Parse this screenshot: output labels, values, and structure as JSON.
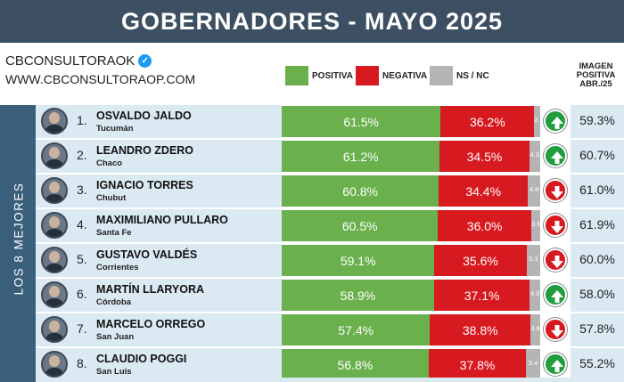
{
  "header": {
    "title": "GOBERNADORES - MAYO 2025"
  },
  "brand": {
    "name": "CBCONSULTORAOK",
    "url": "WWW.CBCONSULTORAOP.COM"
  },
  "side_label": "LOS 8 MEJORES",
  "colors": {
    "positiva": "#6ab04c",
    "negativa": "#d71920",
    "ns_nc": "#b4b4b4",
    "up_arrow": "#1f9d3f",
    "down_arrow": "#d71920"
  },
  "chart_data": {
    "type": "bar",
    "stacked": true,
    "orientation": "horizontal",
    "title": "GOBERNADORES - MAYO 2025",
    "legend": [
      "POSITIVA",
      "NEGATIVA",
      "NS / NC"
    ],
    "prev_header": "IMAGEN POSITIVA ABR./25",
    "categories": [
      "OSVALDO JALDO",
      "LEANDRO ZDERO",
      "IGNACIO TORRES",
      "MAXIMILIANO PULLARO",
      "GUSTAVO VALDÉS",
      "MARTÍN LLARYORA",
      "MARCELO ORREGO",
      "CLAUDIO POGGI"
    ],
    "rows": [
      {
        "rank": "1.",
        "name": "OSVALDO JALDO",
        "province": "Tucumán",
        "positiva": 61.5,
        "negativa": 36.2,
        "ns_nc": 2.3,
        "positiva_label": "61.5%",
        "negativa_label": "36.2%",
        "ns_label": "2.3",
        "trend": "up",
        "prev_label": "59.3%"
      },
      {
        "rank": "2.",
        "name": "LEANDRO ZDERO",
        "province": "Chaco",
        "positiva": 61.2,
        "negativa": 34.5,
        "ns_nc": 4.3,
        "positiva_label": "61.2%",
        "negativa_label": "34.5%",
        "ns_label": "4.3",
        "trend": "up",
        "prev_label": "60.7%"
      },
      {
        "rank": "3.",
        "name": "IGNACIO TORRES",
        "province": "Chubut",
        "positiva": 60.8,
        "negativa": 34.4,
        "ns_nc": 4.8,
        "positiva_label": "60.8%",
        "negativa_label": "34.4%",
        "ns_label": "4.8",
        "trend": "down",
        "prev_label": "61.0%"
      },
      {
        "rank": "4.",
        "name": "MAXIMILIANO PULLARO",
        "province": "Santa Fe",
        "positiva": 60.5,
        "negativa": 36.0,
        "ns_nc": 3.5,
        "positiva_label": "60.5%",
        "negativa_label": "36.0%",
        "ns_label": "3.5",
        "trend": "down",
        "prev_label": "61.9%"
      },
      {
        "rank": "5.",
        "name": "GUSTAVO VALDÉS",
        "province": "Corrientes",
        "positiva": 59.1,
        "negativa": 35.6,
        "ns_nc": 5.3,
        "positiva_label": "59.1%",
        "negativa_label": "35.6%",
        "ns_label": "5.3",
        "trend": "down",
        "prev_label": "60.0%"
      },
      {
        "rank": "6.",
        "name": "MARTÍN LLARYORA",
        "province": "Córdoba",
        "positiva": 58.9,
        "negativa": 37.1,
        "ns_nc": 4.0,
        "positiva_label": "58.9%",
        "negativa_label": "37.1%",
        "ns_label": "4.0",
        "trend": "up",
        "prev_label": "58.0%"
      },
      {
        "rank": "7.",
        "name": "MARCELO ORREGO",
        "province": "San Juan",
        "positiva": 57.4,
        "negativa": 38.8,
        "ns_nc": 3.8,
        "positiva_label": "57.4%",
        "negativa_label": "38.8%",
        "ns_label": "3.8",
        "trend": "down",
        "prev_label": "57.8%"
      },
      {
        "rank": "8.",
        "name": "CLAUDIO POGGI",
        "province": "San Luis",
        "positiva": 56.8,
        "negativa": 37.8,
        "ns_nc": 5.4,
        "positiva_label": "56.8%",
        "negativa_label": "37.8%",
        "ns_label": "5.4",
        "trend": "up",
        "prev_label": "55.2%"
      }
    ]
  }
}
